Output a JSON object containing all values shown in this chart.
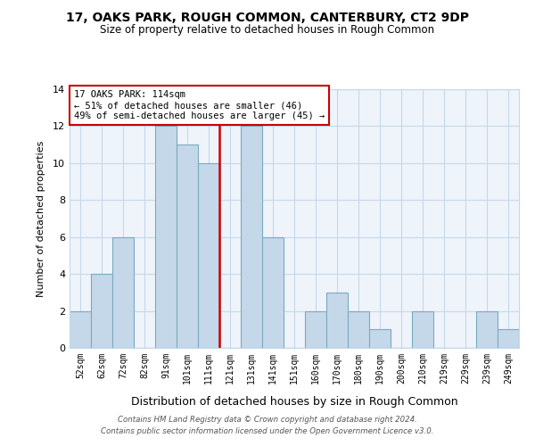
{
  "title": "17, OAKS PARK, ROUGH COMMON, CANTERBURY, CT2 9DP",
  "subtitle": "Size of property relative to detached houses in Rough Common",
  "xlabel": "Distribution of detached houses by size in Rough Common",
  "ylabel": "Number of detached properties",
  "bin_labels": [
    "52sqm",
    "62sqm",
    "72sqm",
    "82sqm",
    "91sqm",
    "101sqm",
    "111sqm",
    "121sqm",
    "131sqm",
    "141sqm",
    "151sqm",
    "160sqm",
    "170sqm",
    "180sqm",
    "190sqm",
    "200sqm",
    "210sqm",
    "219sqm",
    "229sqm",
    "239sqm",
    "249sqm"
  ],
  "bin_values": [
    2,
    4,
    6,
    0,
    12,
    11,
    10,
    0,
    12,
    6,
    0,
    2,
    3,
    2,
    1,
    0,
    2,
    0,
    0,
    2,
    1
  ],
  "bar_color": "#c5d8ea",
  "bar_edgecolor": "#7aaabf",
  "marker_bin_index": 6,
  "marker_color": "#cc0000",
  "annotation_title": "17 OAKS PARK: 114sqm",
  "annotation_line1": "← 51% of detached houses are smaller (46)",
  "annotation_line2": "49% of semi-detached houses are larger (45) →",
  "annotation_box_color": "#cc0000",
  "ylim": [
    0,
    14
  ],
  "yticks": [
    0,
    2,
    4,
    6,
    8,
    10,
    12,
    14
  ],
  "grid_color": "#c5d8ea",
  "bg_color": "#eef4fa",
  "footer1": "Contains HM Land Registry data © Crown copyright and database right 2024.",
  "footer2": "Contains public sector information licensed under the Open Government Licence v3.0."
}
